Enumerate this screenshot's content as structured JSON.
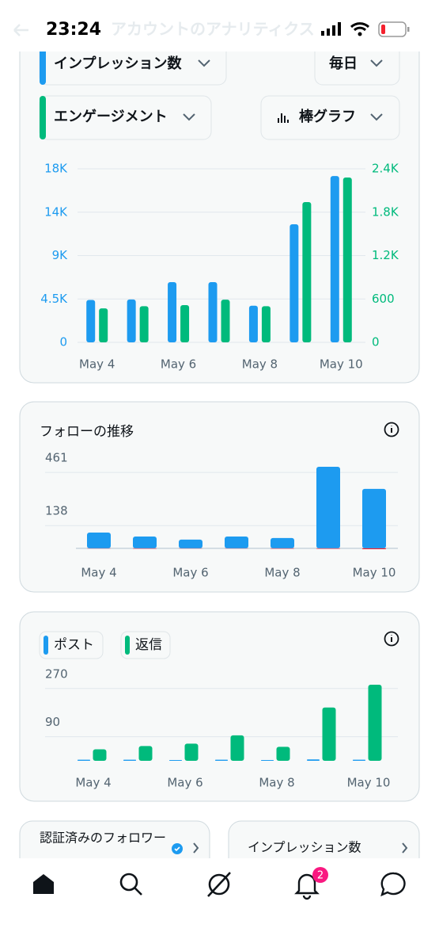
{
  "status_bar": {
    "time": "23:24"
  },
  "header": {
    "title": "アカウントのアナリティクス"
  },
  "controls": {
    "interval": "毎日",
    "chart_style": "棒グラフ"
  },
  "chart_data": [
    {
      "type": "bar",
      "categories": [
        "May 4",
        null,
        "May 6",
        null,
        "May 8",
        null,
        "May 10"
      ],
      "series": [
        {
          "name": "インプレッション数",
          "color": "#1d9bf0",
          "values": [
            4400,
            4450,
            6250,
            6250,
            3800,
            12250,
            17250
          ]
        },
        {
          "name": "エンゲージメント",
          "color": "#00ba7c",
          "axis": "y2",
          "values": [
            470,
            500,
            515,
            590,
            500,
            1940,
            2280
          ]
        }
      ],
      "ylim": [
        0,
        18000
      ],
      "yticks": [
        0,
        {
          "value": 4500,
          "label": "4.5K"
        },
        {
          "value": 9000,
          "label": "9K"
        },
        {
          "value": 13500,
          "label": "14K"
        },
        {
          "value": 18000,
          "label": "18K"
        }
      ],
      "y2lim": [
        0,
        2400
      ],
      "y2ticks": [
        0,
        600,
        {
          "value": 1200,
          "label": "1.2K"
        },
        {
          "value": 1800,
          "label": "1.8K"
        },
        {
          "value": 2400,
          "label": "2.4K"
        }
      ],
      "grid": true
    },
    {
      "type": "bar",
      "title": "フォローの推移",
      "categories": [
        "May 4",
        null,
        "May 6",
        null,
        "May 8",
        null,
        "May 10"
      ],
      "series": [
        {
          "color": "#1d9bf0",
          "values": [
            96,
            72,
            53,
            72,
            63,
            495,
            361
          ]
        },
        {
          "color": "#f4212e",
          "values": [
            -1,
            -2,
            -1,
            -1,
            -2,
            -3,
            -5
          ]
        }
      ],
      "ylim": [
        -10,
        500
      ],
      "yticks": [
        138,
        461
      ],
      "grid": true
    },
    {
      "type": "bar",
      "categories": [
        "May 4",
        null,
        "May 6",
        null,
        "May 8",
        null,
        "May 10"
      ],
      "series": [
        {
          "name": "ポスト",
          "color": "#1d9bf0",
          "values": [
            4,
            4,
            3,
            4,
            3,
            5,
            4
          ]
        },
        {
          "name": "返信",
          "color": "#00ba7c",
          "values": [
            43,
            55,
            64,
            95,
            52,
            199,
            284
          ]
        }
      ],
      "ylim": [
        0,
        290
      ],
      "yticks": [
        90,
        270
      ],
      "grid": true
    }
  ],
  "cards": [
    {
      "title": "認証済みのフォロワー"
    },
    {
      "title": "インプレッション数"
    }
  ],
  "nav": {
    "notifications_badge": "2"
  }
}
